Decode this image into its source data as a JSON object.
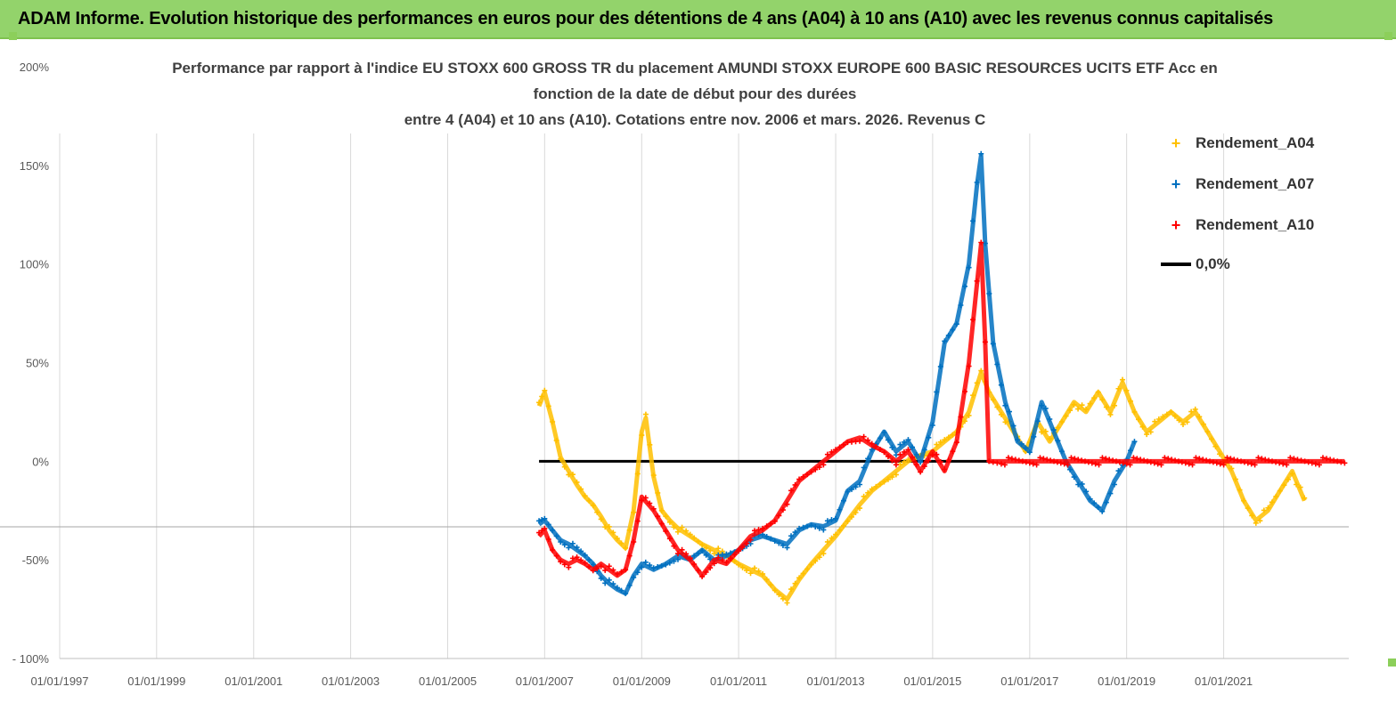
{
  "header": {
    "banner_title": "ADAM Informe. Evolution historique des performances en euros pour des détentions de 4 ans (A04) à 10 ans (A10) avec les revenus connus capitalisés"
  },
  "colors": {
    "banner": "#93d36b",
    "A04": "#ffc000",
    "A07": "#0070c0",
    "A10": "#ff0000",
    "zero_line": "#000000",
    "grid": "#d9d9d9"
  },
  "chart_data": {
    "type": "scatter",
    "title_lines": [
      "Performance par rapport à l'indice EU STOXX 600 GROSS TR  du placement AMUNDI STOXX EUROPE 600 BASIC RESOURCES UCITS ETF Acc en",
      "fonction de la date de début pour des durées",
      "entre 4 (A04) et 10 ans (A10). Cotations entre nov. 2006 et mars. 2026. Revenus C"
    ],
    "x_range": [
      "1997-01-01",
      "2023-08-01"
    ],
    "x_ticks": [
      "01/01/1997",
      "01/01/1999",
      "01/01/2001",
      "01/01/2003",
      "01/01/2005",
      "01/01/2007",
      "01/01/2009",
      "01/01/2011",
      "01/01/2013",
      "01/01/2015",
      "01/01/2017",
      "01/01/2019",
      "01/01/2021"
    ],
    "y_range": [
      -100,
      200
    ],
    "y_ticks": [
      {
        "value": 200,
        "label": "200%"
      },
      {
        "value": 150,
        "label": "150%"
      },
      {
        "value": 100,
        "label": "100%"
      },
      {
        "value": 50,
        "label": "50%"
      },
      {
        "value": 0,
        "label": "0%"
      },
      {
        "value": -50,
        "label": "-50%"
      },
      {
        "value": -100,
        "label": "- 100%"
      }
    ],
    "grid": "vertical",
    "legend_position": "right",
    "marker": "+",
    "series": [
      {
        "name": "Rendement_A04",
        "color": "#ffc000",
        "points": [
          [
            "2006-11-20",
            28
          ],
          [
            "2007-01-01",
            35
          ],
          [
            "2007-03-01",
            20
          ],
          [
            "2007-05-01",
            2
          ],
          [
            "2007-07-01",
            -5
          ],
          [
            "2007-09-01",
            -12
          ],
          [
            "2007-11-01",
            -18
          ],
          [
            "2008-01-01",
            -22
          ],
          [
            "2008-03-01",
            -28
          ],
          [
            "2008-05-01",
            -35
          ],
          [
            "2008-07-01",
            -40
          ],
          [
            "2008-09-01",
            -44
          ],
          [
            "2008-11-01",
            -25
          ],
          [
            "2009-01-01",
            15
          ],
          [
            "2009-02-01",
            22
          ],
          [
            "2009-04-01",
            -8
          ],
          [
            "2009-06-01",
            -25
          ],
          [
            "2009-08-01",
            -30
          ],
          [
            "2009-10-01",
            -34
          ],
          [
            "2010-01-01",
            -38
          ],
          [
            "2010-04-01",
            -42
          ],
          [
            "2010-07-01",
            -45
          ],
          [
            "2010-10-01",
            -48
          ],
          [
            "2011-01-01",
            -52
          ],
          [
            "2011-04-01",
            -55
          ],
          [
            "2011-07-01",
            -58
          ],
          [
            "2011-10-01",
            -65
          ],
          [
            "2012-01-01",
            -70
          ],
          [
            "2012-04-01",
            -60
          ],
          [
            "2012-07-01",
            -52
          ],
          [
            "2012-10-01",
            -45
          ],
          [
            "2013-01-01",
            -38
          ],
          [
            "2013-04-01",
            -30
          ],
          [
            "2013-07-01",
            -22
          ],
          [
            "2013-10-01",
            -15
          ],
          [
            "2014-01-01",
            -10
          ],
          [
            "2014-04-01",
            -5
          ],
          [
            "2014-07-01",
            0
          ],
          [
            "2014-10-01",
            3
          ],
          [
            "2015-01-01",
            5
          ],
          [
            "2015-04-01",
            10
          ],
          [
            "2015-07-01",
            15
          ],
          [
            "2015-10-01",
            25
          ],
          [
            "2016-01-01",
            45
          ],
          [
            "2016-03-01",
            35
          ],
          [
            "2016-06-01",
            25
          ],
          [
            "2016-09-01",
            15
          ],
          [
            "2016-12-01",
            5
          ],
          [
            "2017-03-01",
            20
          ],
          [
            "2017-06-01",
            10
          ],
          [
            "2017-09-01",
            20
          ],
          [
            "2017-12-01",
            30
          ],
          [
            "2018-03-01",
            25
          ],
          [
            "2018-06-01",
            35
          ],
          [
            "2018-09-01",
            25
          ],
          [
            "2018-12-01",
            40
          ],
          [
            "2019-03-01",
            25
          ],
          [
            "2019-06-01",
            15
          ],
          [
            "2019-09-01",
            20
          ],
          [
            "2019-12-01",
            25
          ],
          [
            "2020-03-01",
            20
          ],
          [
            "2020-06-01",
            25
          ],
          [
            "2020-09-01",
            15
          ],
          [
            "2020-12-01",
            5
          ],
          [
            "2021-03-01",
            -5
          ],
          [
            "2021-06-01",
            -20
          ],
          [
            "2021-09-01",
            -30
          ],
          [
            "2021-12-01",
            -25
          ],
          [
            "2022-03-01",
            -15
          ],
          [
            "2022-06-01",
            -5
          ],
          [
            "2022-09-01",
            -20
          ]
        ]
      },
      {
        "name": "Rendement_A07",
        "color": "#0070c0",
        "points": [
          [
            "2006-11-20",
            -32
          ],
          [
            "2007-01-01",
            -30
          ],
          [
            "2007-03-01",
            -35
          ],
          [
            "2007-05-01",
            -40
          ],
          [
            "2007-07-01",
            -42
          ],
          [
            "2007-09-01",
            -45
          ],
          [
            "2007-11-01",
            -48
          ],
          [
            "2008-01-01",
            -52
          ],
          [
            "2008-03-01",
            -58
          ],
          [
            "2008-05-01",
            -62
          ],
          [
            "2008-07-01",
            -65
          ],
          [
            "2008-09-01",
            -67
          ],
          [
            "2008-11-01",
            -58
          ],
          [
            "2009-01-01",
            -52
          ],
          [
            "2009-04-01",
            -55
          ],
          [
            "2009-07-01",
            -52
          ],
          [
            "2009-10-01",
            -48
          ],
          [
            "2010-01-01",
            -50
          ],
          [
            "2010-04-01",
            -45
          ],
          [
            "2010-07-01",
            -50
          ],
          [
            "2010-10-01",
            -48
          ],
          [
            "2011-01-01",
            -45
          ],
          [
            "2011-04-01",
            -40
          ],
          [
            "2011-07-01",
            -38
          ],
          [
            "2011-10-01",
            -40
          ],
          [
            "2012-01-01",
            -42
          ],
          [
            "2012-04-01",
            -35
          ],
          [
            "2012-07-01",
            -32
          ],
          [
            "2012-10-01",
            -33
          ],
          [
            "2013-01-01",
            -30
          ],
          [
            "2013-04-01",
            -15
          ],
          [
            "2013-07-01",
            -10
          ],
          [
            "2013-10-01",
            5
          ],
          [
            "2014-01-01",
            15
          ],
          [
            "2014-04-01",
            5
          ],
          [
            "2014-07-01",
            10
          ],
          [
            "2014-10-01",
            0
          ],
          [
            "2015-01-01",
            20
          ],
          [
            "2015-04-01",
            60
          ],
          [
            "2015-07-01",
            70
          ],
          [
            "2015-10-01",
            100
          ],
          [
            "2015-12-01",
            140
          ],
          [
            "2016-01-01",
            155
          ],
          [
            "2016-02-01",
            110
          ],
          [
            "2016-04-01",
            60
          ],
          [
            "2016-07-01",
            30
          ],
          [
            "2016-10-01",
            10
          ],
          [
            "2017-01-01",
            5
          ],
          [
            "2017-04-01",
            30
          ],
          [
            "2017-07-01",
            15
          ],
          [
            "2017-10-01",
            0
          ],
          [
            "2018-01-01",
            -10
          ],
          [
            "2018-04-01",
            -20
          ],
          [
            "2018-07-01",
            -25
          ],
          [
            "2018-10-01",
            -10
          ],
          [
            "2019-01-01",
            0
          ],
          [
            "2019-03-01",
            10
          ]
        ]
      },
      {
        "name": "Rendement_A10",
        "color": "#ff0000",
        "points": [
          [
            "2006-11-20",
            -38
          ],
          [
            "2007-01-01",
            -35
          ],
          [
            "2007-03-01",
            -45
          ],
          [
            "2007-05-01",
            -50
          ],
          [
            "2007-07-01",
            -52
          ],
          [
            "2007-09-01",
            -50
          ],
          [
            "2007-11-01",
            -52
          ],
          [
            "2008-01-01",
            -55
          ],
          [
            "2008-03-01",
            -52
          ],
          [
            "2008-05-01",
            -55
          ],
          [
            "2008-07-01",
            -58
          ],
          [
            "2008-09-01",
            -55
          ],
          [
            "2008-11-01",
            -40
          ],
          [
            "2009-01-01",
            -18
          ],
          [
            "2009-04-01",
            -25
          ],
          [
            "2009-07-01",
            -35
          ],
          [
            "2009-10-01",
            -45
          ],
          [
            "2010-01-01",
            -50
          ],
          [
            "2010-04-01",
            -58
          ],
          [
            "2010-07-01",
            -50
          ],
          [
            "2010-10-01",
            -52
          ],
          [
            "2011-01-01",
            -45
          ],
          [
            "2011-04-01",
            -38
          ],
          [
            "2011-07-01",
            -35
          ],
          [
            "2011-10-01",
            -30
          ],
          [
            "2012-01-01",
            -20
          ],
          [
            "2012-04-01",
            -10
          ],
          [
            "2012-07-01",
            -5
          ],
          [
            "2012-10-01",
            0
          ],
          [
            "2013-01-01",
            5
          ],
          [
            "2013-04-01",
            10
          ],
          [
            "2013-07-01",
            12
          ],
          [
            "2013-10-01",
            8
          ],
          [
            "2014-01-01",
            5
          ],
          [
            "2014-04-01",
            0
          ],
          [
            "2014-07-01",
            5
          ],
          [
            "2014-10-01",
            -5
          ],
          [
            "2015-01-01",
            5
          ],
          [
            "2015-04-01",
            -5
          ],
          [
            "2015-07-01",
            10
          ],
          [
            "2015-10-01",
            50
          ],
          [
            "2015-12-01",
            90
          ],
          [
            "2016-01-01",
            110
          ],
          [
            "2016-02-01",
            60
          ],
          [
            "2016-03-01",
            0
          ],
          [
            "2016-06-01",
            0
          ],
          [
            "2017-01-01",
            0
          ],
          [
            "2018-01-01",
            0
          ],
          [
            "2019-01-01",
            0
          ],
          [
            "2020-01-01",
            0
          ],
          [
            "2021-01-01",
            0
          ],
          [
            "2022-01-01",
            0
          ],
          [
            "2023-07-01",
            0
          ]
        ]
      }
    ],
    "reference_line": {
      "name": "0,0%",
      "value": 0,
      "x_start": "2006-11-20",
      "x_end": "2016-03-01"
    }
  }
}
